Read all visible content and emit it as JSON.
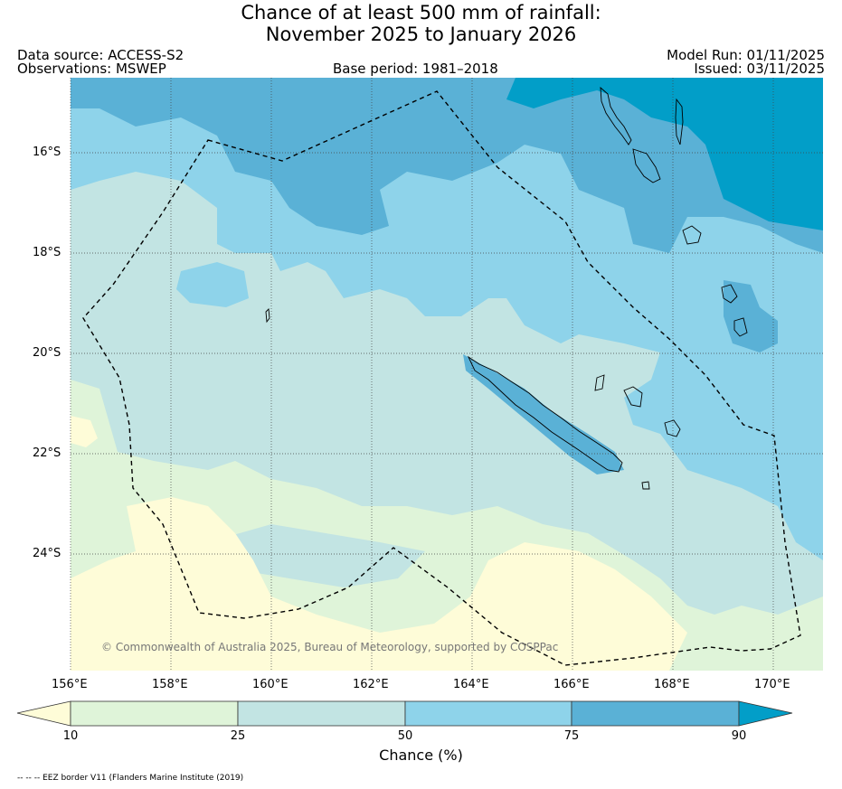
{
  "title_line1": "Chance of at least 500 mm of rainfall:",
  "title_line2": "November 2025 to January 2026",
  "data_source": "Data source: ACCESS-S2",
  "observations": "Observations: MSWEP",
  "base_period": "Base period: 1981–2018",
  "model_run": "Model Run: 01/11/2025",
  "issued": "Issued: 03/11/2025",
  "lat_labels": [
    "16°S",
    "18°S",
    "20°S",
    "22°S",
    "24°S"
  ],
  "lon_labels": [
    "156°E",
    "158°E",
    "160°E",
    "162°E",
    "164°E",
    "166°E",
    "168°E",
    "170°E"
  ],
  "credit": "© Commonwealth of Australia 2025, Bureau of Meteorology, supported by COSPPac",
  "colorbar": {
    "ticks": [
      "10",
      "25",
      "50",
      "75",
      "90"
    ],
    "label": "Chance (%)",
    "colors": [
      "#fefcd8",
      "#dff4d9",
      "#c2e4e3",
      "#8ed3ea",
      "#5ab1d6",
      "#029ec8"
    ]
  },
  "footnote": "-- -- -- EEZ border V11 (Flanders Marine Institute (2019)"
}
